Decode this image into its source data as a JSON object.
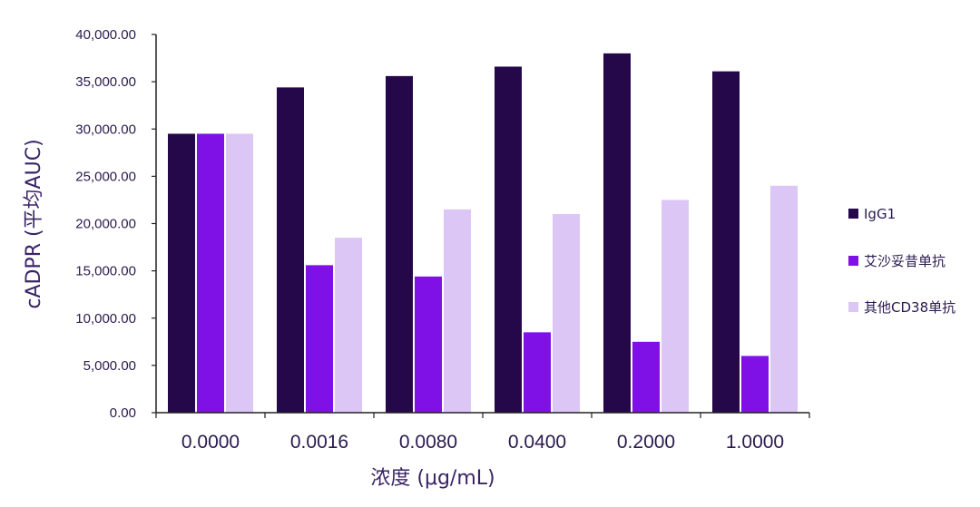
{
  "chart_data": {
    "type": "bar",
    "title": "",
    "xlabel": "浓度 (μg/mL)",
    "ylabel": "cADPR (平均AUC)",
    "ylim": [
      0,
      40000
    ],
    "yticks": [
      "0.00",
      "5,000.00",
      "10,000.00",
      "15,000.00",
      "20,000.00",
      "25,000.00",
      "30,000.00",
      "35,000.00",
      "40,000.00"
    ],
    "categories": [
      "0.0000",
      "0.0016",
      "0.0080",
      "0.0400",
      "0.2000",
      "1.0000"
    ],
    "series": [
      {
        "name": "IgG1",
        "color": "#24084a",
        "values": [
          29500,
          34400,
          35600,
          36600,
          38000,
          36100
        ]
      },
      {
        "name": "艾沙妥昔单抗",
        "color": "#7f10e6",
        "values": [
          29500,
          15600,
          14400,
          8500,
          7500,
          6000
        ]
      },
      {
        "name": "其他CD38单抗",
        "color": "#dcc6f6",
        "values": [
          29500,
          18500,
          21500,
          21000,
          22500,
          24000
        ]
      }
    ],
    "legend": "right",
    "grid": false
  }
}
